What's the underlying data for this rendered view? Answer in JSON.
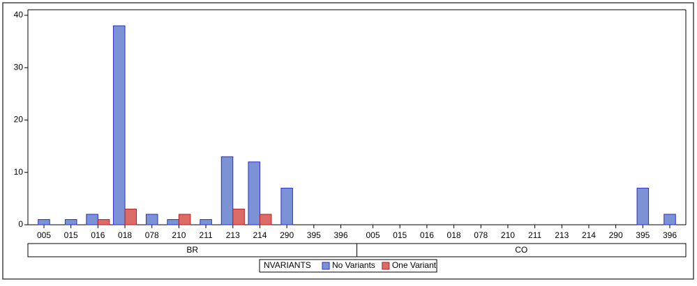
{
  "chart_data": {
    "type": "bar",
    "legend_title": "NVARIANTS",
    "categories": [
      "005",
      "015",
      "016",
      "018",
      "078",
      "210",
      "211",
      "213",
      "214",
      "290",
      "395",
      "396"
    ],
    "groups": [
      "BR",
      "CO"
    ],
    "series": [
      {
        "name": "No Variants",
        "color": "#7b93d4",
        "edge": "#2a2ad0",
        "values": [
          [
            1,
            1,
            2,
            38,
            2,
            1,
            1,
            13,
            12,
            7,
            null,
            null
          ],
          [
            null,
            null,
            null,
            null,
            null,
            null,
            null,
            null,
            null,
            null,
            7,
            2
          ]
        ]
      },
      {
        "name": "One Variant",
        "color": "#dc6a66",
        "edge": "#b02020",
        "values": [
          [
            null,
            null,
            1,
            3,
            null,
            2,
            null,
            3,
            2,
            null,
            null,
            null
          ],
          [
            null,
            null,
            null,
            null,
            null,
            null,
            null,
            null,
            null,
            null,
            null,
            null
          ]
        ]
      }
    ],
    "ylim": [
      0,
      40
    ],
    "yticks": [
      0,
      10,
      20,
      30,
      40
    ]
  }
}
